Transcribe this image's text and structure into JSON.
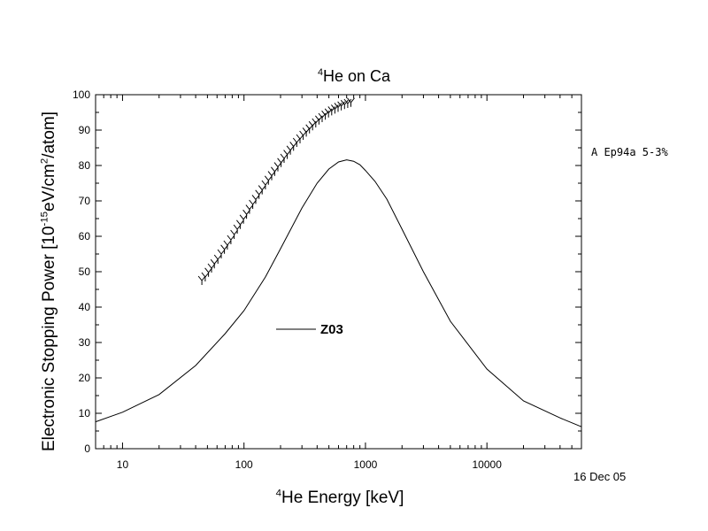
{
  "chart_data": {
    "type": "line",
    "title_sup": "4",
    "title_main": "He on Ca",
    "xlabel_sup": "4",
    "xlabel_main": "He Energy [keV]",
    "ylabel_pre": "Electronic Stopping Power [10",
    "ylabel_sup1": "-15",
    "ylabel_mid": "eV/cm",
    "ylabel_sup2": "2",
    "ylabel_post": "/atom]",
    "x_scale": "log",
    "xlim": [
      6,
      60000
    ],
    "ylim": [
      0,
      100
    ],
    "x_ticks": [
      10,
      100,
      1000,
      10000
    ],
    "x_tick_labels": [
      "10",
      "100",
      "1000",
      "10000"
    ],
    "y_ticks": [
      0,
      10,
      20,
      30,
      40,
      50,
      60,
      70,
      80,
      90,
      100
    ],
    "y_tick_labels": [
      "0",
      "10",
      "20",
      "30",
      "40",
      "50",
      "60",
      "70",
      "80",
      "90",
      "100"
    ],
    "grid": false,
    "series": [
      {
        "name": "Z03",
        "style": "line",
        "color": "#000000",
        "x": [
          6,
          10,
          20,
          40,
          70,
          100,
          150,
          200,
          300,
          400,
          500,
          600,
          700,
          800,
          900,
          1000,
          1200,
          1500,
          2000,
          3000,
          5000,
          10000,
          20000,
          40000,
          60000
        ],
        "y": [
          7.6,
          10.3,
          15.3,
          23.5,
          32.5,
          39.0,
          48.5,
          56.5,
          68.0,
          75.0,
          79.0,
          81.0,
          81.6,
          81.2,
          80.2,
          78.6,
          75.5,
          70.5,
          62.0,
          50.0,
          36.0,
          22.5,
          13.5,
          8.7,
          6.2
        ]
      },
      {
        "name": "A Ep94a  5-3%",
        "style": "marker",
        "marker": "Y",
        "color": "#000000",
        "x": [
          45,
          48,
          51,
          54,
          57,
          61,
          65,
          69,
          73,
          78,
          83,
          88,
          93,
          99,
          105,
          111,
          118,
          125,
          133,
          141,
          150,
          159,
          169,
          179,
          190,
          202,
          214,
          227,
          241,
          256,
          272,
          289,
          307,
          326,
          346,
          367,
          390,
          414,
          440,
          467,
          496,
          527,
          560,
          595,
          632,
          672,
          714,
          759
        ],
        "y": [
          47.5,
          48.5,
          49.8,
          51.0,
          52.2,
          53.5,
          55.0,
          56.3,
          57.5,
          59.0,
          60.5,
          62.0,
          63.3,
          64.8,
          66.2,
          67.6,
          69.0,
          70.4,
          71.8,
          73.1,
          74.5,
          75.8,
          77.1,
          78.3,
          79.6,
          80.8,
          82.0,
          83.1,
          84.3,
          85.4,
          86.5,
          87.5,
          88.5,
          89.4,
          90.3,
          91.2,
          92.0,
          92.8,
          93.5,
          94.2,
          94.8,
          95.4,
          95.9,
          96.4,
          96.8,
          97.2,
          97.5,
          97.8
        ]
      }
    ],
    "legend_entries": {
      "ref": "A Ep94a  5-3%",
      "curve": "Z03"
    },
    "annotation_date": "16 Dec 05"
  }
}
